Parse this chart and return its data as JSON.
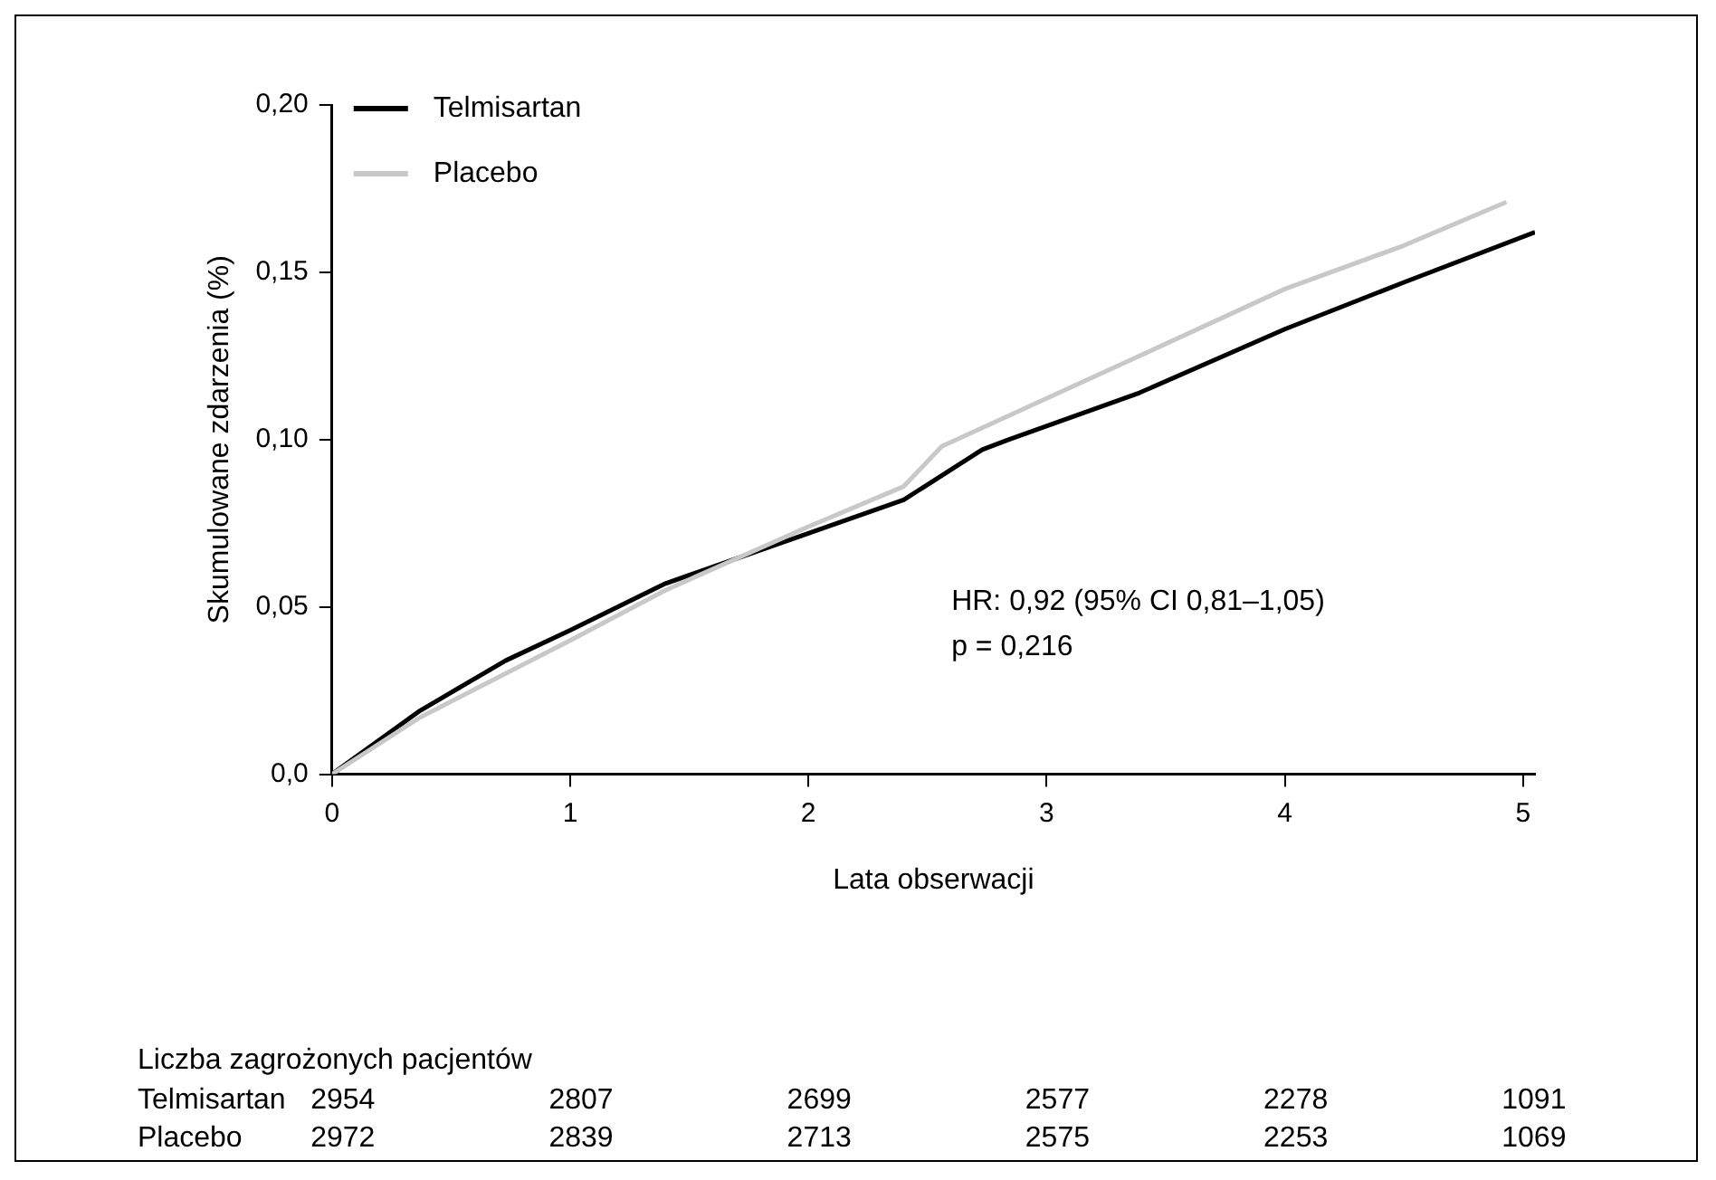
{
  "chart_data": {
    "type": "line",
    "xlabel": "Lata obserwacji",
    "ylabel": "Skumulowane zdarzenia (%)",
    "xlim": [
      0,
      5.05
    ],
    "xticks": [
      0,
      1,
      2,
      3,
      4,
      5
    ],
    "ylim": [
      0,
      0.2
    ],
    "yticks": [
      {
        "value": 0,
        "label": "0,0"
      },
      {
        "value": 0.05,
        "label": "0,05"
      },
      {
        "value": 0.1,
        "label": "0,10"
      },
      {
        "value": 0.15,
        "label": "0,15"
      },
      {
        "value": 0.2,
        "label": "0,20"
      }
    ],
    "grid": false,
    "legend": "top left",
    "marker": "none",
    "line_style": "solid",
    "series": [
      {
        "name": "Telmisartan",
        "color": "#000000",
        "x": [
          0,
          0.37,
          0.73,
          1,
          1.4,
          2,
          2.4,
          2.73,
          2.84,
          3.39,
          4,
          4.5,
          5.05
        ],
        "values": [
          0,
          0.019,
          0.034,
          0.043,
          0.057,
          0.072,
          0.082,
          0.097,
          0.1,
          0.114,
          0.133,
          0.147,
          0.162
        ]
      },
      {
        "name": "Placebo",
        "color": "#c8c8c8",
        "x": [
          0,
          0.37,
          1,
          1.4,
          2,
          2.4,
          2.56,
          3.39,
          4,
          4.5,
          4.93
        ],
        "values": [
          0,
          0.017,
          0.04,
          0.055,
          0.074,
          0.086,
          0.098,
          0.125,
          0.145,
          0.158,
          0.171
        ]
      }
    ],
    "annotations": [
      "HR: 0,92 (95% CI 0,81–1,05)",
      "p = 0,216",
      "Liczba zagrożonych pacjentów",
      "Telmisartan\t2954\t2807\t2699\t2577\t2278\t1091",
      "Placebo\t2972\t2839\t2713\t2575\t2253\t1069"
    ]
  }
}
